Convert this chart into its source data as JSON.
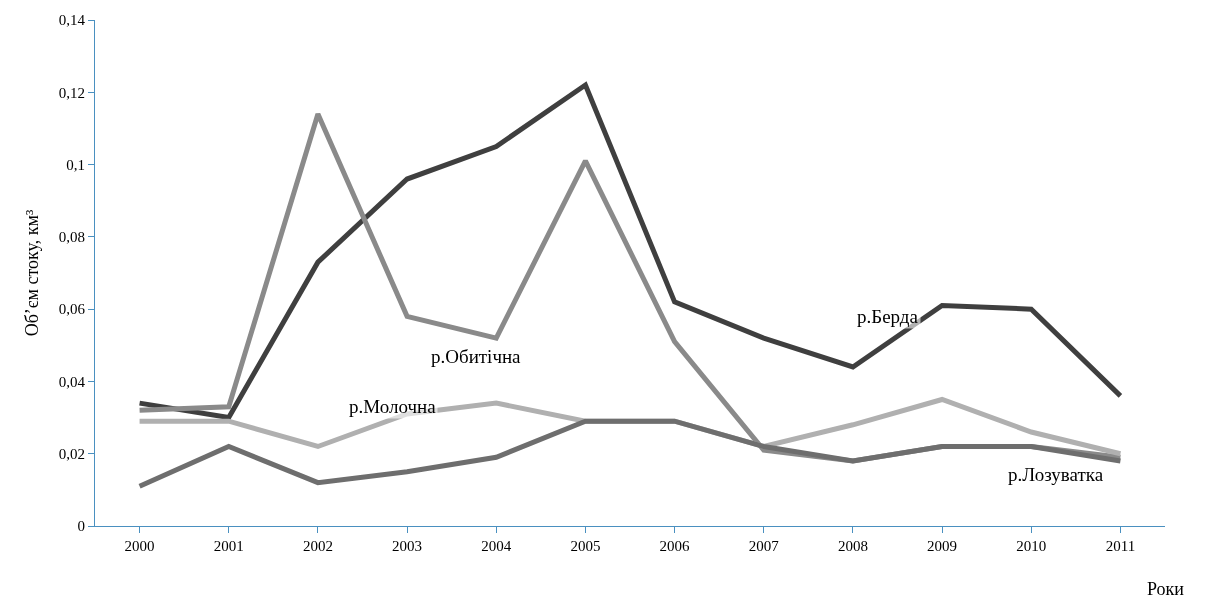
{
  "chart_data": {
    "type": "line",
    "xlabel": "Роки",
    "ylabel": "Об’єм стоку, км³",
    "categories": [
      "2000",
      "2001",
      "2002",
      "2003",
      "2004",
      "2005",
      "2006",
      "2007",
      "2008",
      "2009",
      "2010",
      "2011"
    ],
    "series": [
      {
        "name": "р.Берда",
        "color": "#3f3f3f",
        "values": [
          0.034,
          0.03,
          0.073,
          0.096,
          0.105,
          0.122,
          0.062,
          0.052,
          0.044,
          0.061,
          0.06,
          0.036
        ]
      },
      {
        "name": "р.Обитічна",
        "color": "#8a8a8a",
        "values": [
          0.032,
          0.033,
          0.114,
          0.058,
          0.052,
          0.101,
          0.051,
          0.021,
          0.018,
          0.022,
          0.022,
          0.019
        ]
      },
      {
        "name": "р.Молочна",
        "color": "#b0b0b0",
        "values": [
          0.029,
          0.029,
          0.022,
          0.031,
          0.034,
          0.029,
          0.029,
          0.022,
          0.028,
          0.035,
          0.026,
          0.02
        ]
      },
      {
        "name": "р.Лозуватка",
        "color": "#6e6e6e",
        "values": [
          0.011,
          0.022,
          0.012,
          0.015,
          0.019,
          0.029,
          0.029,
          0.022,
          0.018,
          0.022,
          0.022,
          0.018
        ]
      }
    ],
    "ylim": [
      0,
      0.14
    ],
    "yticks": [
      0,
      {
        "value": 0.02,
        "label": "0,02"
      },
      {
        "value": 0.04,
        "label": "0,04"
      },
      {
        "value": 0.06,
        "label": "0,06"
      },
      {
        "value": 0.08,
        "label": "0,08"
      },
      {
        "value": 0.1,
        "label": "0,1"
      },
      {
        "value": 0.12,
        "label": "0,12"
      },
      {
        "value": 0.14,
        "label": "0,14"
      }
    ],
    "marker": "none",
    "line_style": "solid"
  }
}
